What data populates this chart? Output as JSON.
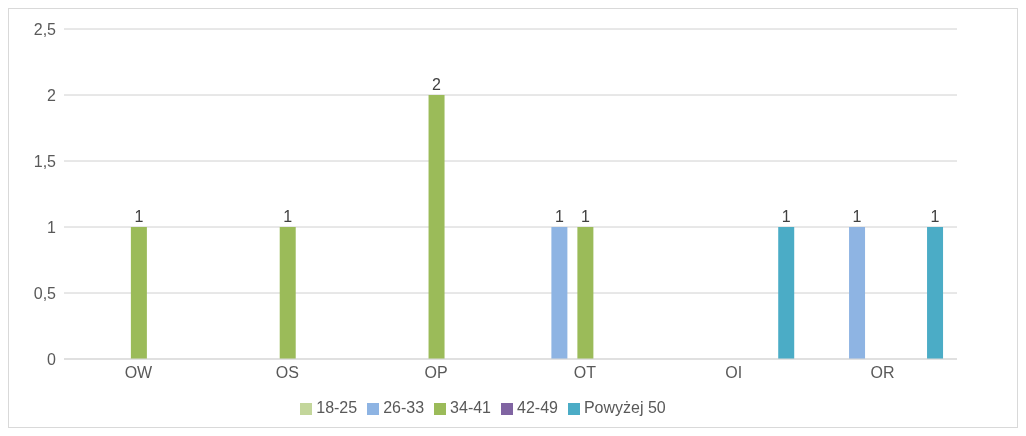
{
  "chart_data": {
    "type": "bar",
    "categories": [
      "OW",
      "OS",
      "OP",
      "OT",
      "OI",
      "OR"
    ],
    "series": [
      {
        "name": "18-25",
        "color": "#c3d69b",
        "values": [
          null,
          null,
          null,
          null,
          null,
          null
        ]
      },
      {
        "name": "26-33",
        "color": "#8eb4e3",
        "values": [
          null,
          null,
          null,
          1,
          null,
          1
        ]
      },
      {
        "name": "34-41",
        "color": "#9bbb59",
        "values": [
          1,
          1,
          2,
          1,
          null,
          null
        ]
      },
      {
        "name": "42-49",
        "color": "#8064a2",
        "values": [
          null,
          null,
          null,
          null,
          null,
          null
        ]
      },
      {
        "name": "Powyżej 50",
        "color": "#4bacc6",
        "values": [
          null,
          null,
          null,
          null,
          1,
          1
        ]
      }
    ],
    "ylim": [
      0,
      2.5
    ],
    "yticks": [
      0,
      {
        "value": 0.5,
        "label": "0,5"
      },
      1,
      {
        "value": 1.5,
        "label": "1,5"
      },
      2,
      {
        "value": 2.5,
        "label": "2,5"
      }
    ],
    "grid": "y",
    "legend": "bottom",
    "data_labels": true
  }
}
